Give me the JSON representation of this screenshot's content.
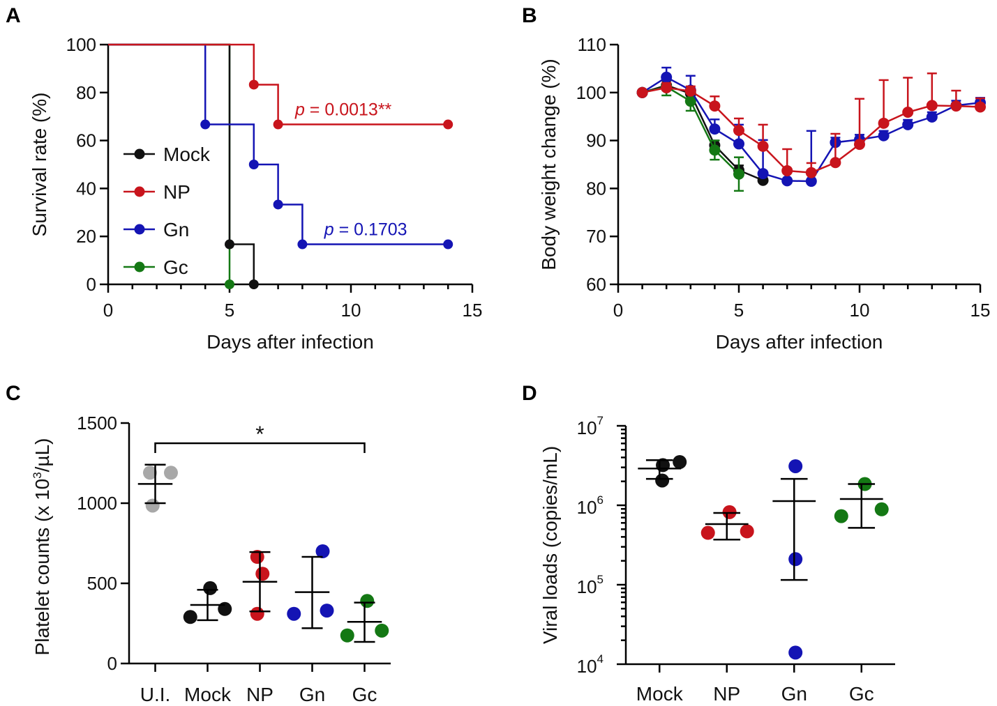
{
  "colors": {
    "Mock": "#111111",
    "NP": "#c8141c",
    "Gn": "#1414b4",
    "Gc": "#147814",
    "UI": "#a8a8a8"
  },
  "chart_data": [
    {
      "panel": "A",
      "type": "line",
      "step": true,
      "xlabel": "Days after infection",
      "ylabel": "Survival rate (%)",
      "xlim": [
        0,
        15
      ],
      "ylim": [
        0,
        100
      ],
      "xticks": [
        0,
        5,
        10,
        15
      ],
      "yticks": [
        0,
        20,
        40,
        60,
        80,
        100
      ],
      "series": [
        {
          "name": "Mock",
          "points": [
            [
              0,
              100
            ],
            [
              5,
              16.7
            ],
            [
              6,
              0
            ]
          ]
        },
        {
          "name": "NP",
          "points": [
            [
              0,
              100
            ],
            [
              6,
              83.3
            ],
            [
              7,
              66.7
            ],
            [
              14,
              66.7
            ]
          ]
        },
        {
          "name": "Gn",
          "points": [
            [
              0,
              100
            ],
            [
              4,
              66.7
            ],
            [
              6,
              50
            ],
            [
              7,
              33.3
            ],
            [
              8,
              16.7
            ],
            [
              14,
              16.7
            ]
          ]
        },
        {
          "name": "Gc",
          "points": [
            [
              0,
              100
            ],
            [
              5,
              0
            ]
          ]
        }
      ],
      "annotations": [
        {
          "series": "NP",
          "p_symbol": "p",
          "text": " = 0.0013**"
        },
        {
          "series": "Gn",
          "p_symbol": "p",
          "text": " = 0.1703"
        }
      ],
      "legend": [
        "Mock",
        "NP",
        "Gn",
        "Gc"
      ],
      "legend_position": "left"
    },
    {
      "panel": "B",
      "type": "line",
      "xlabel": "Days after infection",
      "ylabel": "Body weight change (%)",
      "xlim": [
        0,
        15
      ],
      "ylim": [
        60,
        110
      ],
      "xticks": [
        0,
        5,
        10,
        15
      ],
      "yticks": [
        60,
        70,
        80,
        90,
        100,
        110
      ],
      "series": [
        {
          "name": "Mock",
          "x": [
            1,
            2,
            3,
            4,
            5,
            6
          ],
          "y": [
            100,
            101.5,
            99.8,
            89,
            83.8,
            81.7
          ],
          "err": [
            0,
            1,
            1,
            1,
            1,
            0
          ]
        },
        {
          "name": "Gc",
          "x": [
            1,
            2,
            3,
            4,
            5
          ],
          "y": [
            100,
            101.2,
            98.2,
            88,
            83
          ],
          "err": [
            0,
            1.8,
            2,
            2,
            3.5
          ]
        },
        {
          "name": "Gn",
          "x": [
            1,
            2,
            3,
            4,
            5,
            6,
            7,
            8,
            9,
            10,
            11,
            12,
            13,
            14,
            15
          ],
          "y": [
            100,
            103.2,
            100.5,
            92.4,
            89.3,
            83.1,
            81.6,
            81.5,
            89.6,
            90.2,
            91,
            93.3,
            94.9,
            97.3,
            97.9
          ],
          "err": [
            0,
            2,
            3,
            2,
            4,
            7,
            2,
            10.5,
            1,
            1,
            1,
            1,
            1,
            1,
            1
          ]
        },
        {
          "name": "NP",
          "x": [
            1,
            2,
            3,
            4,
            5,
            6,
            7,
            8,
            9,
            10,
            11,
            12,
            13,
            14,
            15
          ],
          "y": [
            100,
            101,
            100.3,
            97.2,
            92.1,
            88.8,
            83.7,
            83.3,
            85.4,
            89.2,
            93.6,
            95.9,
            97.3,
            97.2,
            97
          ],
          "err": [
            0,
            1,
            1,
            2,
            2.5,
            4.5,
            4.5,
            2,
            6,
            9.5,
            9,
            7.2,
            6.7,
            3.2,
            1.8
          ]
        }
      ]
    },
    {
      "panel": "C",
      "type": "scatter",
      "ylabel_main": "Platelet counts (x 10",
      "ylabel_sup": "3",
      "ylabel_end": "/µL)",
      "categories": [
        "U.I.",
        "Mock",
        "NP",
        "Gn",
        "Gc"
      ],
      "ylim": [
        0,
        1500
      ],
      "yticks": [
        0,
        500,
        1000,
        1500
      ],
      "groups": [
        {
          "name": "U.I.",
          "color_key": "UI",
          "points": [
            1190,
            1190,
            985
          ],
          "mean": 1120,
          "sd_low": 1000,
          "sd_high": 1240
        },
        {
          "name": "Mock",
          "color_key": "Mock",
          "points": [
            290,
            470,
            340
          ],
          "mean": 365,
          "sd_low": 270,
          "sd_high": 460
        },
        {
          "name": "NP",
          "color_key": "NP",
          "points": [
            310,
            560,
            665
          ],
          "mean": 510,
          "sd_low": 325,
          "sd_high": 695
        },
        {
          "name": "Gn",
          "color_key": "Gn",
          "points": [
            310,
            700,
            330
          ],
          "mean": 445,
          "sd_low": 220,
          "sd_high": 665
        },
        {
          "name": "Gc",
          "color_key": "Gc",
          "points": [
            175,
            390,
            205
          ],
          "mean": 260,
          "sd_low": 135,
          "sd_high": 380
        }
      ],
      "significance": {
        "from": "U.I.",
        "to": "Gc",
        "label": "*"
      }
    },
    {
      "panel": "D",
      "type": "scatter",
      "yscale": "log",
      "ylabel": "Viral loads (copies/mL)",
      "categories": [
        "Mock",
        "NP",
        "Gn",
        "Gc"
      ],
      "ylim": [
        10000,
        10000000
      ],
      "yticks": [
        {
          "base": "10",
          "exp": "4",
          "value": 10000
        },
        {
          "base": "10",
          "exp": "5",
          "value": 100000
        },
        {
          "base": "10",
          "exp": "6",
          "value": 1000000
        },
        {
          "base": "10",
          "exp": "7",
          "value": 10000000
        }
      ],
      "groups": [
        {
          "name": "Mock",
          "color_key": "Mock",
          "points": [
            3200000,
            3500000,
            2050000
          ],
          "mean": 2900000,
          "sd_low": 2150000,
          "sd_high": 3700000
        },
        {
          "name": "NP",
          "color_key": "NP",
          "points": [
            450000,
            820000,
            470000
          ],
          "mean": 580000,
          "sd_low": 370000,
          "sd_high": 800000
        },
        {
          "name": "Gn",
          "color_key": "Gn",
          "points": [
            3100000,
            210000,
            14000
          ],
          "mean": 1130000,
          "sd_low": 115000,
          "sd_high": 2150000
        },
        {
          "name": "Gc",
          "color_key": "Gc",
          "points": [
            1850000,
            730000,
            890000
          ],
          "mean": 1200000,
          "sd_low": 520000,
          "sd_high": 1850000
        }
      ]
    }
  ]
}
